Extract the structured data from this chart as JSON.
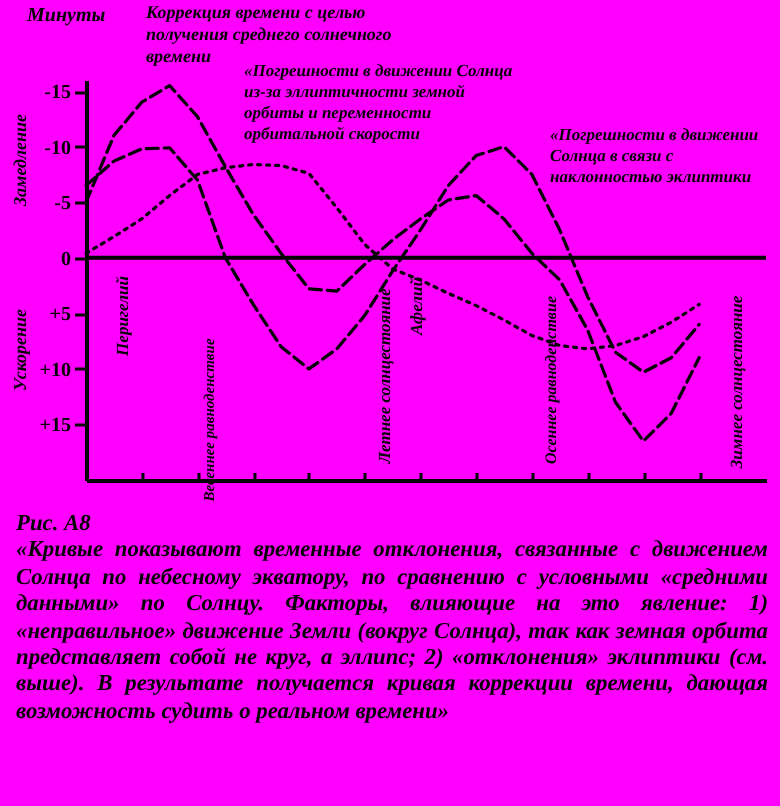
{
  "chart_data": {
    "type": "line",
    "ylabel": "Минуты",
    "categories": [
      null,
      null,
      null,
      null,
      null,
      null,
      null,
      null,
      null,
      null,
      null,
      null,
      null,
      null,
      null,
      null,
      null,
      null,
      null,
      null,
      null,
      null,
      null,
      null,
      null
    ],
    "ylim": [
      20,
      -16
    ],
    "yticks": [
      -15,
      -10,
      -5,
      0,
      {
        "value": 5,
        "label": "+5"
      },
      {
        "value": 10,
        "label": "+10"
      },
      {
        "value": 15,
        "label": "+15"
      }
    ],
    "tick_labels": "y",
    "ref_lines": [
      {
        "axis": "y",
        "value": 0
      }
    ],
    "series": [
      {
        "color": "#000000",
        "line_style": "dashed",
        "values": [
          -5,
          -11,
          -14,
          -15.5,
          -12.7,
          -8.2,
          -3.9,
          -0.4,
          2.8,
          3,
          0.6,
          -1.6,
          -3.5,
          -5.2,
          -5.6,
          -3.5,
          -0.4,
          2,
          6.5,
          13,
          16.5,
          14,
          9,
          null,
          null
        ]
      },
      {
        "color": "#000000",
        "line_style": "dashed",
        "values": [
          -6.5,
          -8.7,
          -9.8,
          -9.9,
          -7,
          0,
          4.2,
          8,
          10,
          8.2,
          5.2,
          1.2,
          -2.5,
          -6.5,
          -9.2,
          -10,
          -7.5,
          -2.5,
          3.5,
          8.5,
          10.3,
          9,
          6,
          null,
          null
        ]
      },
      {
        "color": "#000000",
        "line_style": "dotted",
        "values": [
          -0.4,
          -1.9,
          -3.5,
          -5.6,
          -7.5,
          -8.1,
          -8.4,
          -8.3,
          -7.6,
          -4.5,
          -1.2,
          1,
          2,
          3.2,
          4.3,
          5.6,
          7,
          7.9,
          8.2,
          7.9,
          7.1,
          5.8,
          4.2,
          null,
          null
        ]
      }
    ],
    "annotations": [
      "Коррекция времени с целью получения среднего солнечного времени",
      "«Погрешности в движении Солнца из-за эллиптичности земной орбиты и переменности орбитальной скорости",
      "«Погрешности в движении Солнца в связи с наклонностью эклиптики",
      "Замедление",
      "Ускорение",
      "Перигелий",
      "Весеннее равноденствие",
      "Летнее солнцестояние",
      "Афелий",
      "Осеннее равноденствие",
      "Зимнее солнцестояние",
      "Рис. А8",
      "«Кривые показывают временные отклонения, связанные с движением Солнца по небесному экватору, по сравнению с условными «средними данными» по Солнцу. Факторы, влияющие на это явление: 1) «неправильное» движение Земли (вокруг Солнца), так как земная орбита представляет собой не круг, а эллипс; 2) «отклонения» эклиптики (см. выше). В результате получается кривая коррекции времени, дающая возможность судить о реальном времени»"
    ]
  }
}
